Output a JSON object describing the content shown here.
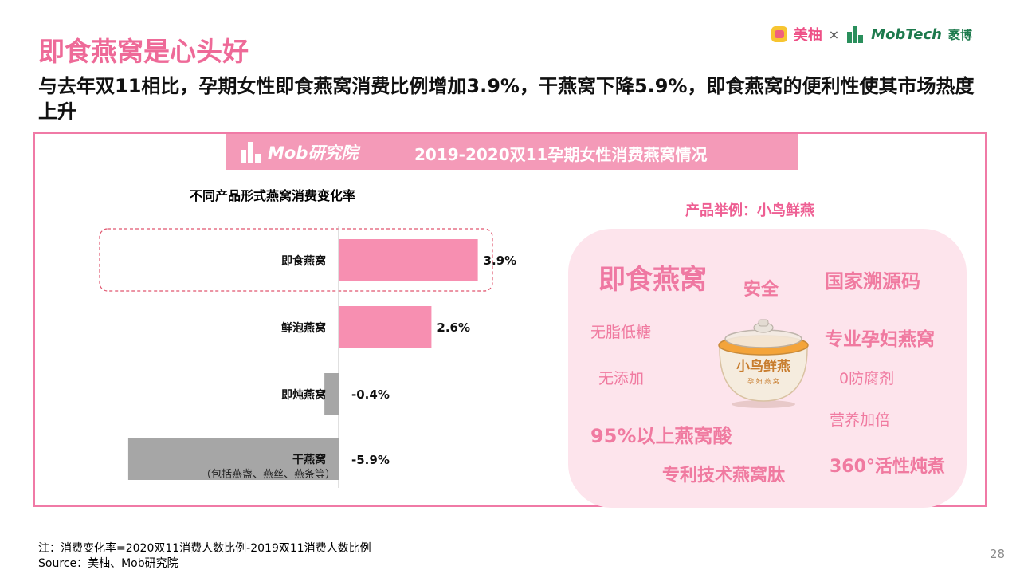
{
  "header": {
    "title": "即食燕窝是心头好",
    "subtitle": "与去年双11相比，孕期女性即食燕窝消费比例增加3.9%，干燕窝下降5.9%，即食燕窝的便利性使其市场热度上升",
    "brand_meiyou": "美柚",
    "brand_separator": "×",
    "brand_mobtech": "MobTech",
    "brand_mobtech_cn": "袤博"
  },
  "banner": {
    "logo_text": "Mob研究院",
    "title": "2019-2020双11孕期女性消费燕窝情况"
  },
  "chart_data": {
    "type": "bar",
    "orientation": "horizontal",
    "title": "不同产品形式燕窝消费变化率",
    "categories": [
      "即食燕窝",
      "鲜泡燕窝",
      "即炖燕窝",
      "干燕窝"
    ],
    "category_notes": [
      "",
      "",
      "",
      "（包括燕盏、燕丝、燕条等）"
    ],
    "values": [
      3.9,
      2.6,
      -0.4,
      -5.9
    ],
    "value_labels": [
      "3.9%",
      "2.6%",
      "-0.4%",
      "-5.9%"
    ],
    "unit": "%",
    "xlim": [
      -6.3,
      4.4
    ],
    "highlight_category": "即食燕窝",
    "colors": {
      "positive": "#f78fb1",
      "negative": "#a6a6a6",
      "highlight_border": "#e0566f"
    }
  },
  "product": {
    "heading": "产品举例：小鸟鲜燕",
    "bowl_label": "小鸟鲜燕",
    "bowl_sublabel": "孕 妇 燕 窝",
    "tags": {
      "instant": "即食燕窝",
      "safe": "安全",
      "trace": "国家溯源码",
      "low_sugar": "无脂低糖",
      "pregnant": "专业孕妇燕窝",
      "no_additive": "无添加",
      "no_preservative": "0防腐剂",
      "nutrition": "营养加倍",
      "acid": "95%以上燕窝酸",
      "peptide": "专利技术燕窝肽",
      "stew": "360°活性炖煮"
    }
  },
  "footer": {
    "note": "注：消费变化率=2020双11消费人数比例-2019双11消费人数比例",
    "source": "Source：美柚、Mob研究院",
    "page_number": "28"
  }
}
